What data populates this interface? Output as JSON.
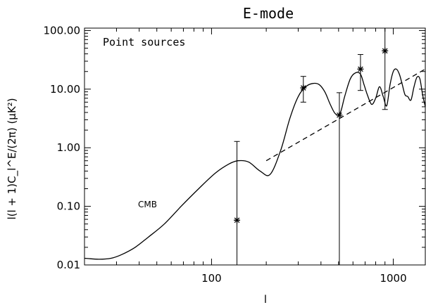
{
  "chart_data": {
    "type": "line",
    "title": "E-mode",
    "xlabel": "l",
    "ylabel": "l(l + 1)C_l^E/(2π) (μK²)",
    "x_scale": "log",
    "y_scale": "log",
    "xlim": [
      20,
      1500
    ],
    "ylim": [
      0.01,
      110
    ],
    "x_ticks": [
      {
        "value": 100,
        "label": "100"
      },
      {
        "value": 1000,
        "label": "1000"
      }
    ],
    "y_ticks": [
      {
        "value": 0.01,
        "label": "0.01"
      },
      {
        "value": 0.1,
        "label": "0.10"
      },
      {
        "value": 1,
        "label": "1.00"
      },
      {
        "value": 10,
        "label": "10.00"
      },
      {
        "value": 100,
        "label": "100.00"
      }
    ],
    "annotations": {
      "legend_text": "Point sources",
      "curve_label": "CMB"
    },
    "series": [
      {
        "name": "CMB",
        "style": "solid",
        "x": [
          20,
          24,
          28,
          32,
          38,
          45,
          55,
          68,
          85,
          105,
          125,
          140,
          160,
          185,
          210,
          240,
          270,
          300,
          330,
          360,
          390,
          420,
          450,
          480,
          510,
          540,
          580,
          620,
          660,
          690,
          720,
          760,
          800,
          840,
          880,
          920,
          960,
          1000,
          1040,
          1080,
          1120,
          1160,
          1200,
          1250,
          1300,
          1350,
          1400,
          1450,
          1500
        ],
        "y": [
          0.013,
          0.0125,
          0.013,
          0.015,
          0.02,
          0.03,
          0.05,
          0.1,
          0.2,
          0.37,
          0.53,
          0.6,
          0.57,
          0.4,
          0.35,
          0.9,
          3.2,
          7.5,
          11,
          12.5,
          12,
          9,
          5.5,
          3.8,
          3.9,
          7.5,
          15,
          19,
          18,
          12,
          8,
          5.5,
          7,
          11,
          7.5,
          5.2,
          12,
          20,
          22,
          18,
          12,
          8,
          7.5,
          6.5,
          11,
          16,
          15,
          8,
          5
        ]
      },
      {
        "name": "Point sources",
        "style": "dashed",
        "x": [
          200,
          1500
        ],
        "y": [
          0.6,
          22
        ]
      }
    ],
    "measurements": [
      {
        "x": 138,
        "y": 0.058,
        "y_low": 0.01,
        "y_high": 1.28
      },
      {
        "x": 320,
        "y": 10.5,
        "y_low": 6,
        "y_high": 16.5
      },
      {
        "x": 505,
        "y": 3.6,
        "y_low": 0.01,
        "y_high": 8.7
      },
      {
        "x": 660,
        "y": 22,
        "y_low": 9.5,
        "y_high": 39
      },
      {
        "x": 900,
        "y": 45,
        "y_low": 4.5,
        "y_high": 110
      }
    ]
  }
}
